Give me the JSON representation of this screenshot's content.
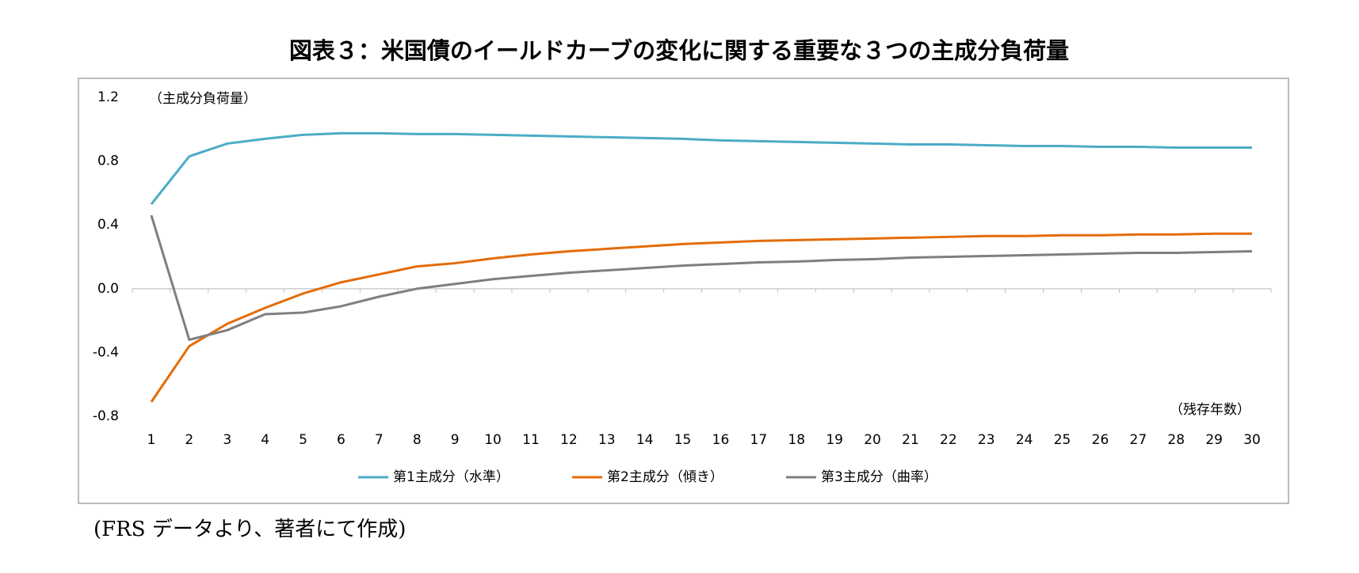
{
  "chart_data": {
    "type": "line",
    "title": "図表３：米国債のイールドカーブの変化に関する重要な３つの主成分負荷量",
    "y_axis_label": "（主成分負荷量）",
    "x_axis_label": "（残存年数）",
    "note": "(FRS データより、著者にて作成)",
    "categories": [
      1,
      2,
      3,
      4,
      5,
      6,
      7,
      8,
      9,
      10,
      11,
      12,
      13,
      14,
      15,
      16,
      17,
      18,
      19,
      20,
      21,
      22,
      23,
      24,
      25,
      26,
      27,
      28,
      29,
      30
    ],
    "series": [
      {
        "name": "第1主成分（水準）",
        "color": "#4bacc6",
        "values": [
          0.53,
          0.83,
          0.91,
          0.94,
          0.965,
          0.975,
          0.975,
          0.97,
          0.97,
          0.965,
          0.96,
          0.955,
          0.95,
          0.945,
          0.94,
          0.93,
          0.925,
          0.92,
          0.915,
          0.91,
          0.905,
          0.905,
          0.9,
          0.895,
          0.895,
          0.89,
          0.89,
          0.885,
          0.885,
          0.885
        ]
      },
      {
        "name": "第2主成分（傾き）",
        "color": "#e36c09",
        "values": [
          -0.71,
          -0.36,
          -0.22,
          -0.12,
          -0.03,
          0.04,
          0.09,
          0.14,
          0.16,
          0.19,
          0.215,
          0.235,
          0.25,
          0.265,
          0.28,
          0.29,
          0.3,
          0.305,
          0.31,
          0.315,
          0.32,
          0.325,
          0.33,
          0.33,
          0.335,
          0.335,
          0.34,
          0.34,
          0.345,
          0.345
        ]
      },
      {
        "name": "第3主成分（曲率）",
        "color": "#7f7f7f",
        "values": [
          0.46,
          -0.32,
          -0.26,
          -0.16,
          -0.15,
          -0.11,
          -0.05,
          0.0,
          0.03,
          0.06,
          0.08,
          0.1,
          0.115,
          0.13,
          0.145,
          0.155,
          0.165,
          0.17,
          0.18,
          0.185,
          0.195,
          0.2,
          0.205,
          0.21,
          0.215,
          0.22,
          0.225,
          0.225,
          0.23,
          0.235
        ]
      }
    ],
    "ylim": [
      -0.8,
      1.2
    ],
    "yticks": [
      -0.8,
      -0.4,
      {
        "value": 0,
        "label": "0.0"
      },
      0.4,
      0.8,
      1.2
    ],
    "negative_tick_color": "#c00000",
    "grid": false,
    "legend": "bottom"
  }
}
